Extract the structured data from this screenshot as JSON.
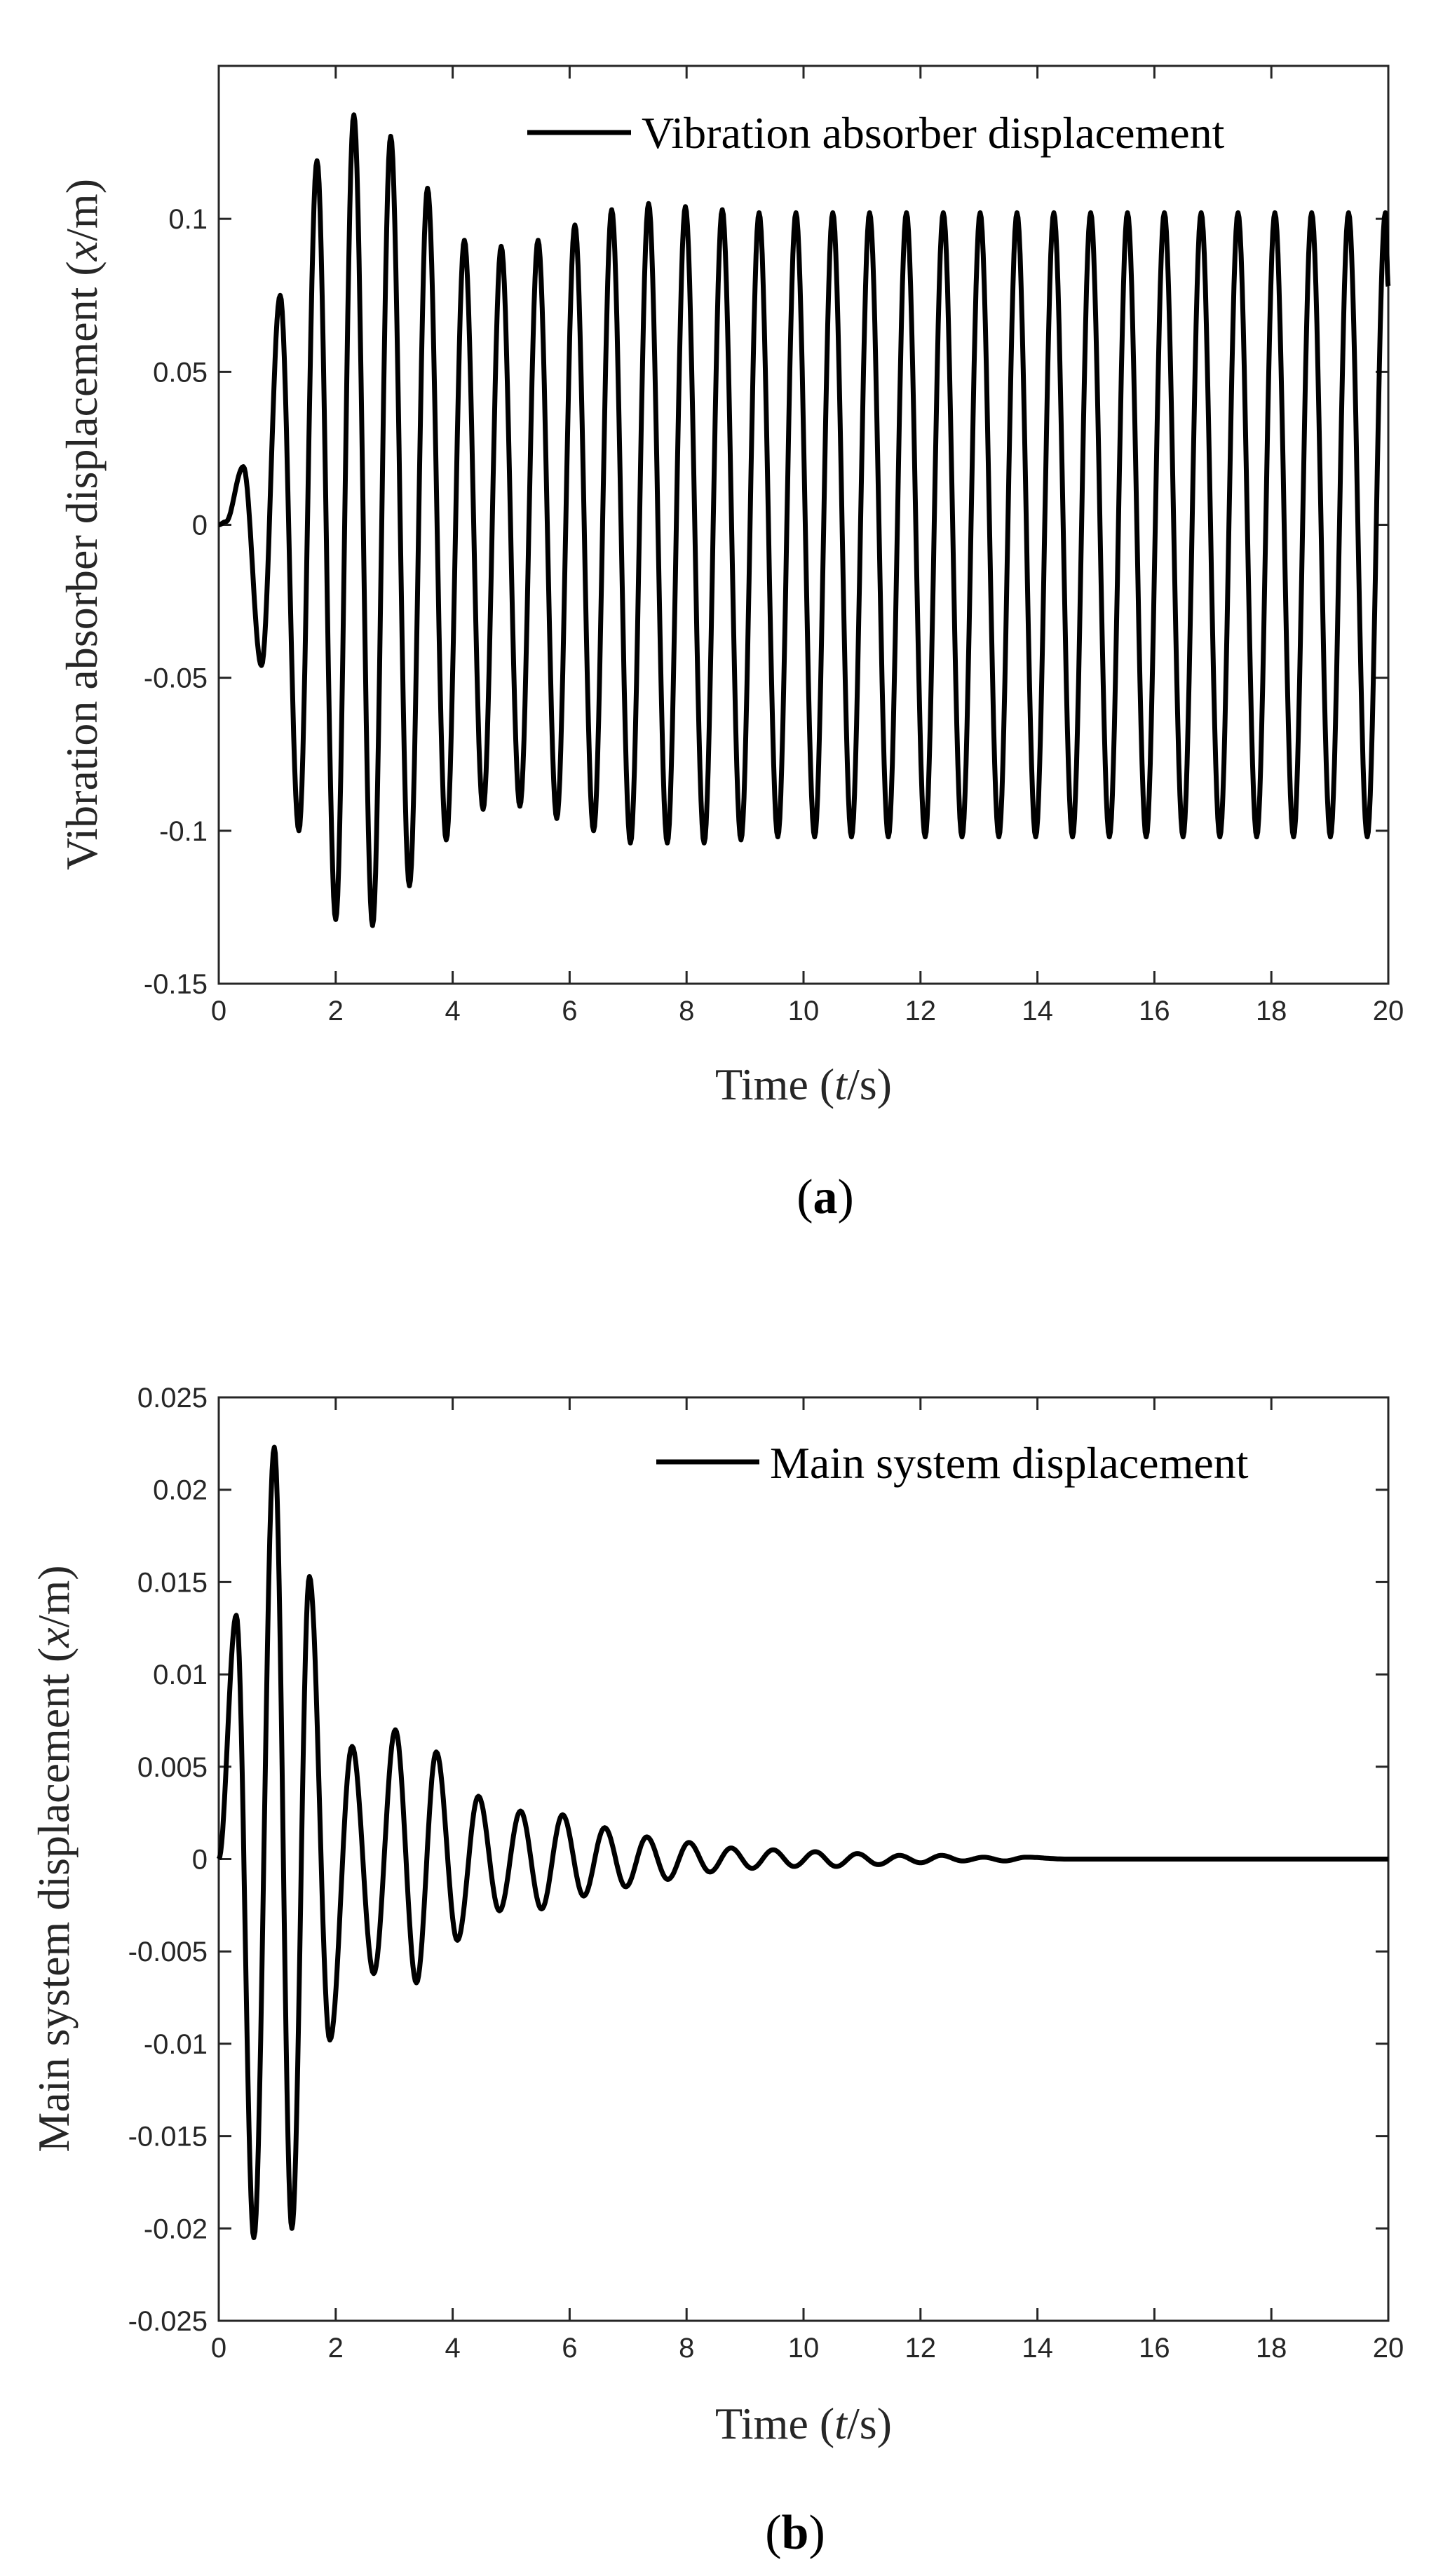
{
  "chart_data": [
    {
      "type": "line",
      "panel": "a",
      "caption_letter": "a",
      "xlabel_pre": "Time (",
      "xlabel_var": "t",
      "xlabel_post": "/s)",
      "ylabel_pre": "Vibration absorber displacement (",
      "ylabel_var": "x",
      "ylabel_post": "/m)",
      "legend": "Vibration absorber displacement",
      "legend_position": "top-right",
      "xlim": [
        0,
        20
      ],
      "ylim": [
        -0.15,
        0.15
      ],
      "xticks": [
        0,
        2,
        4,
        6,
        8,
        10,
        12,
        14,
        16,
        18,
        20
      ],
      "xtick_labels": [
        "0",
        "2",
        "4",
        "6",
        "8",
        "10",
        "12",
        "14",
        "16",
        "18",
        "20"
      ],
      "yticks": [
        -0.15,
        -0.1,
        -0.05,
        0,
        0.05,
        0.1
      ],
      "ytick_labels": [
        "-0.15",
        "-0.1",
        "-0.05",
        "0",
        "0.05",
        "0.1"
      ],
      "series": [
        {
          "name": "Vibration absorber displacement",
          "color": "#000000",
          "period": 0.63,
          "x": [
            0,
            0.12,
            0.42,
            0.73,
            1.05,
            1.37,
            1.68,
            2.0,
            2.31,
            2.63,
            2.94,
            3.26,
            3.57,
            3.89,
            4.2,
            4.52,
            4.83,
            5.15,
            5.46,
            5.78,
            6.09,
            6.41,
            6.72,
            7.04,
            7.35,
            7.67,
            7.98,
            8.3,
            8.61,
            8.93,
            9.24,
            9.56,
            9.87,
            10.19,
            10.5,
            10.82,
            11.13,
            11.45,
            11.76,
            12.08,
            12.39,
            12.71,
            13.02,
            13.34,
            13.65,
            13.97,
            14.28,
            14.6,
            14.91,
            15.23,
            15.54,
            15.86,
            16.17,
            16.49,
            16.8,
            17.12,
            17.43,
            17.75,
            18.06,
            18.38,
            18.69,
            19.01,
            19.32,
            19.64,
            19.95,
            20.0
          ],
          "y": [
            0,
            0.001,
            0.019,
            -0.046,
            0.075,
            -0.1,
            0.119,
            -0.129,
            0.134,
            -0.131,
            0.127,
            -0.118,
            0.11,
            -0.103,
            0.093,
            -0.093,
            0.091,
            -0.092,
            0.093,
            -0.096,
            0.098,
            -0.1,
            0.103,
            -0.104,
            0.105,
            -0.104,
            0.104,
            -0.104,
            0.103,
            -0.103,
            0.102,
            -0.102,
            0.102,
            -0.102,
            0.102,
            -0.102,
            0.102,
            -0.102,
            0.102,
            -0.102,
            0.102,
            -0.102,
            0.102,
            -0.102,
            0.102,
            -0.102,
            0.102,
            -0.102,
            0.102,
            -0.102,
            0.102,
            -0.102,
            0.102,
            -0.102,
            0.102,
            -0.102,
            0.102,
            -0.102,
            0.102,
            -0.102,
            0.102,
            -0.102,
            0.102,
            -0.102,
            0.102,
            0.078
          ]
        }
      ]
    },
    {
      "type": "line",
      "panel": "b",
      "caption_letter": "b",
      "xlabel_pre": "Time (",
      "xlabel_var": "t",
      "xlabel_post": "/s)",
      "ylabel_pre": "Main system displacement (",
      "ylabel_var": "x",
      "ylabel_post": "/m)",
      "legend": "Main system displacement",
      "legend_position": "top-right",
      "xlim": [
        0,
        20
      ],
      "ylim": [
        -0.025,
        0.025
      ],
      "xticks": [
        0,
        2,
        4,
        6,
        8,
        10,
        12,
        14,
        16,
        18,
        20
      ],
      "xtick_labels": [
        "0",
        "2",
        "4",
        "6",
        "8",
        "10",
        "12",
        "14",
        "16",
        "18",
        "20"
      ],
      "yticks": [
        -0.025,
        -0.02,
        -0.015,
        -0.01,
        -0.005,
        0,
        0.005,
        0.01,
        0.015,
        0.02,
        0.025
      ],
      "ytick_labels": [
        "-0.025",
        "-0.02",
        "-0.015",
        "-0.01",
        "-0.005",
        "0",
        "0.005",
        "0.01",
        "0.015",
        "0.02",
        "0.025"
      ],
      "series": [
        {
          "name": "Main system displacement",
          "color": "#000000",
          "x": [
            0,
            0.3,
            0.6,
            0.95,
            1.25,
            1.55,
            1.9,
            2.28,
            2.65,
            3.02,
            3.38,
            3.72,
            4.08,
            4.44,
            4.8,
            5.16,
            5.52,
            5.88,
            6.24,
            6.6,
            6.96,
            7.32,
            7.68,
            8.04,
            8.4,
            8.76,
            9.12,
            9.48,
            9.84,
            10.2,
            10.56,
            10.92,
            11.28,
            11.64,
            12.0,
            12.36,
            12.72,
            13.08,
            13.44,
            13.8,
            14.5,
            15.5,
            16.5,
            17.5,
            18.5,
            19.5,
            20.0
          ],
          "y": [
            0,
            0.0132,
            -0.0205,
            0.0223,
            -0.02,
            0.0153,
            -0.0098,
            0.0061,
            -0.0062,
            0.007,
            -0.0067,
            0.0058,
            -0.0044,
            0.0034,
            -0.0028,
            0.0026,
            -0.0027,
            0.0024,
            -0.002,
            0.0017,
            -0.0015,
            0.0012,
            -0.0011,
            0.0009,
            -0.0007,
            0.0006,
            -0.0005,
            0.0005,
            -0.0004,
            0.0004,
            -0.0004,
            0.0003,
            -0.0003,
            0.0002,
            -0.0002,
            0.0002,
            -0.0001,
            0.0001,
            -0.0001,
            0.0001,
            0.0,
            0.0,
            0.0,
            0.0,
            0.0,
            0.0,
            0.0
          ]
        }
      ]
    }
  ]
}
